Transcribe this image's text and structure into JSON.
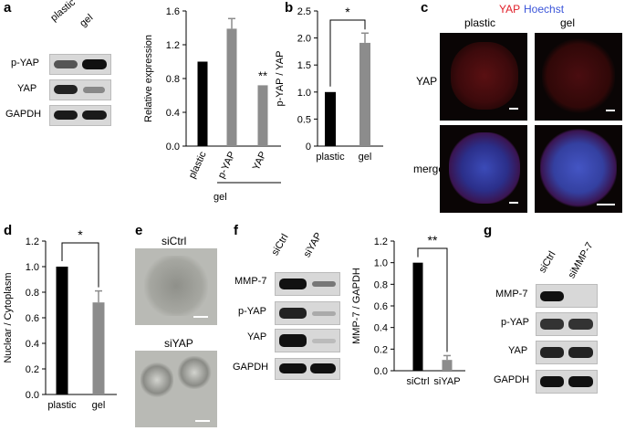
{
  "panels": {
    "a": "a",
    "b": "b",
    "c": "c",
    "d": "d",
    "e": "e",
    "f": "f",
    "g": "g"
  },
  "panel_a": {
    "blot_lanes": [
      "plastic",
      "gel"
    ],
    "blot_rows": [
      "p-YAP",
      "YAP",
      "GAPDH"
    ],
    "sig": "**",
    "group_label": "gel"
  },
  "panel_c": {
    "legend_yap": "YAP",
    "legend_hoechst": "Hoechst",
    "cols": [
      "plastic",
      "gel"
    ],
    "rows": [
      "YAP",
      "merge"
    ]
  },
  "panel_e": {
    "labels": [
      "siCtrl",
      "siYAP"
    ]
  },
  "panel_f": {
    "blot_lanes": [
      "siCtrl",
      "siYAP"
    ],
    "blot_rows": [
      "MMP-7",
      "p-YAP",
      "YAP",
      "GAPDH"
    ]
  },
  "panel_g": {
    "blot_lanes": [
      "siCtrl",
      "siMMP-7"
    ],
    "blot_rows": [
      "MMP-7",
      "p-YAP",
      "YAP",
      "GAPDH"
    ]
  },
  "colors": {
    "black_bar": "#000000",
    "gray_bar": "#8c8c8c",
    "yap_red": "#e0202a",
    "hoechst_blue": "#3b55d9"
  },
  "chart_data": [
    {
      "id": "a",
      "type": "bar",
      "categories": [
        "plastic",
        "p-YAP",
        "YAP"
      ],
      "values": [
        1.0,
        1.39,
        0.72
      ],
      "errors": [
        0,
        0.12,
        0
      ],
      "ylabel": "Relative expression",
      "ylim": [
        0,
        1.6
      ],
      "yticks": [
        "0.0",
        "0.4",
        "0.8",
        "1.2",
        "1.6"
      ],
      "significance": "**"
    },
    {
      "id": "b",
      "type": "bar",
      "categories": [
        "plastic",
        "gel"
      ],
      "values": [
        1.0,
        1.91
      ],
      "errors": [
        0,
        0.18
      ],
      "ylabel": "p-YAP / YAP",
      "ylim": [
        0,
        2.5
      ],
      "yticks": [
        "0",
        "0.5",
        "1.0",
        "1.5",
        "2.0",
        "2.5"
      ],
      "significance": "*"
    },
    {
      "id": "d",
      "type": "bar",
      "categories": [
        "plastic",
        "gel"
      ],
      "values": [
        1.0,
        0.72
      ],
      "errors": [
        0,
        0.09
      ],
      "ylabel": "Nuclear / Cytoplasm",
      "ylim": [
        0,
        1.2
      ],
      "yticks": [
        "0.0",
        "0.2",
        "0.4",
        "0.6",
        "0.8",
        "1.0",
        "1.2"
      ],
      "significance": "*"
    },
    {
      "id": "f",
      "type": "bar",
      "categories": [
        "siCtrl",
        "siYAP"
      ],
      "values": [
        1.0,
        0.1
      ],
      "errors": [
        0,
        0.04
      ],
      "ylabel": "MMP-7 / GAPDH",
      "ylim": [
        0,
        1.2
      ],
      "yticks": [
        "0.0",
        "0.2",
        "0.4",
        "0.6",
        "0.8",
        "1.0",
        "1.2"
      ],
      "significance": "**"
    }
  ]
}
